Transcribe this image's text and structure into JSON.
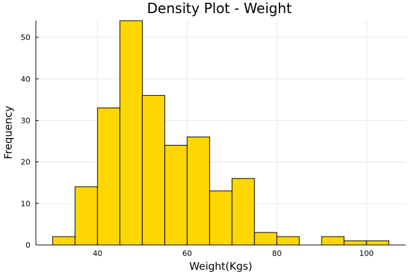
{
  "chart_data": {
    "type": "bar",
    "title": "Density Plot - Weight",
    "xlabel": "Weight(Kgs)",
    "ylabel": "Frequency",
    "bin_edges": [
      30,
      35,
      40,
      45,
      50,
      55,
      60,
      65,
      70,
      75,
      80,
      85,
      90,
      95,
      100,
      105
    ],
    "values": [
      2,
      14,
      33,
      54,
      36,
      24,
      26,
      13,
      16,
      3,
      2,
      0,
      2,
      1,
      1
    ],
    "xlim": [
      26.25,
      108.75
    ],
    "ylim": [
      0,
      54
    ],
    "xticks": [
      40,
      60,
      80,
      100
    ],
    "yticks": [
      0,
      10,
      20,
      30,
      40,
      50
    ],
    "grid": true,
    "legend": "none",
    "bar_color": "#FFD700",
    "edge_color": "#000000"
  }
}
